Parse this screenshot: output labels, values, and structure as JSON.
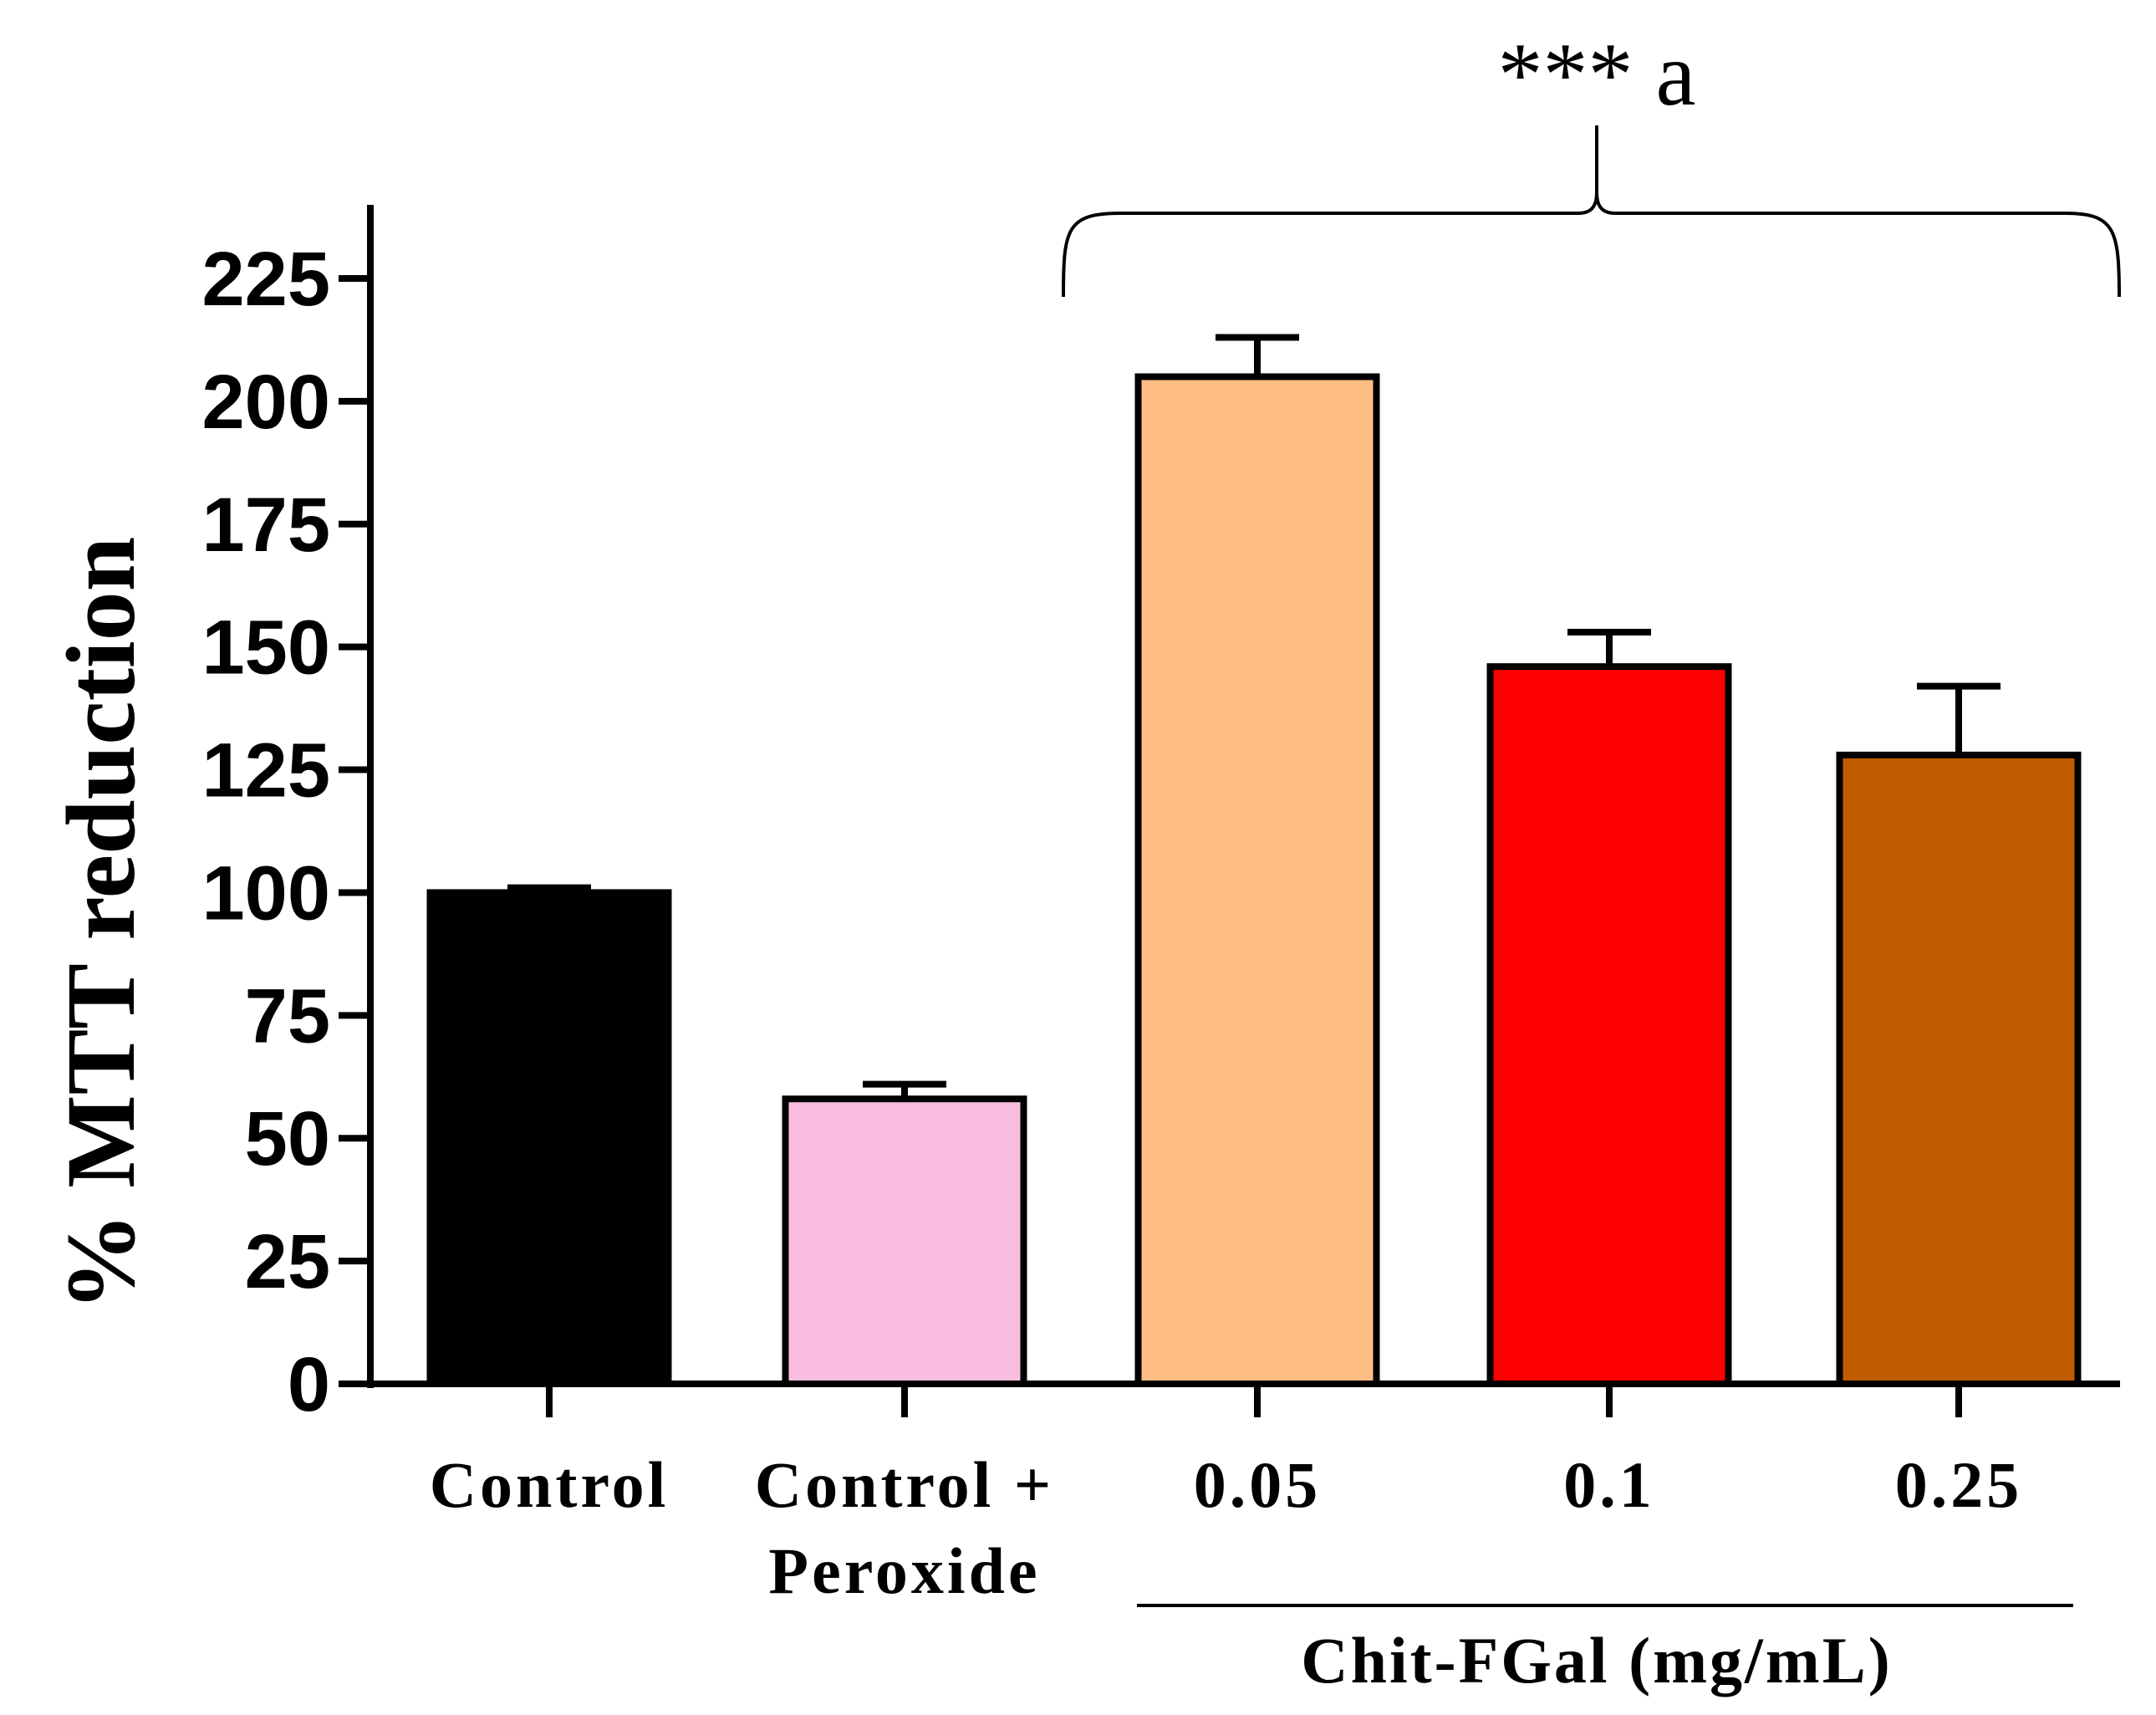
{
  "chart_data": {
    "type": "bar",
    "title": "",
    "xlabel": "",
    "ylabel": "% MTT reduction",
    "ylim": [
      0,
      240
    ],
    "yticks": [
      0,
      25,
      50,
      75,
      100,
      125,
      150,
      175,
      200,
      225
    ],
    "grid": false,
    "categories": [
      {
        "lines": [
          "Control"
        ]
      },
      {
        "lines": [
          "Control +",
          "Peroxide"
        ]
      },
      {
        "lines": [
          "0.05"
        ]
      },
      {
        "lines": [
          "0.1"
        ]
      },
      {
        "lines": [
          "0.25"
        ]
      }
    ],
    "values": [
      100,
      58,
      205,
      146,
      128
    ],
    "errors": [
      1,
      3,
      8,
      7,
      14
    ],
    "colors": [
      "#000000",
      "#f9bde0",
      "#fdbd83",
      "#ff0000",
      "#bf5c00"
    ],
    "annotation": "*** a",
    "group_label": "Chit-FGal (mg/mL)"
  }
}
